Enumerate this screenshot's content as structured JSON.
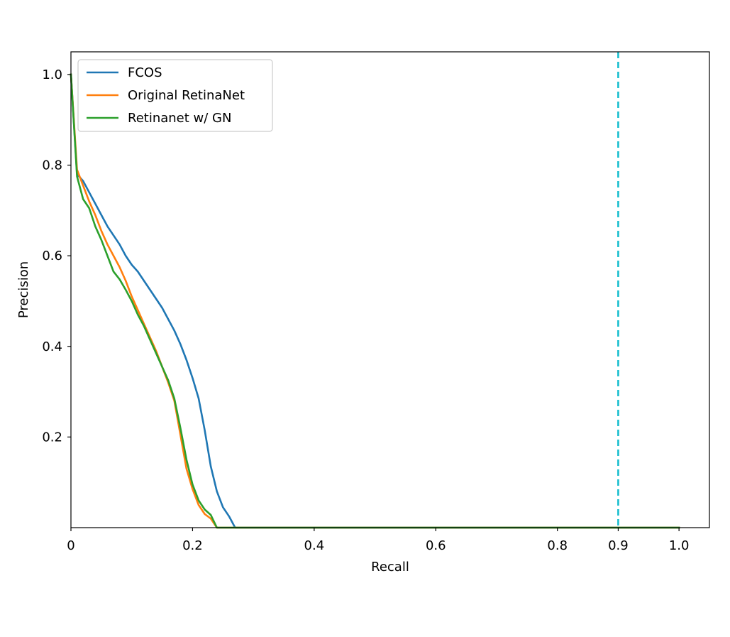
{
  "chart_data": {
    "type": "line",
    "title": "",
    "xlabel": "Recall",
    "ylabel": "Precision",
    "xlim": [
      0,
      1.05
    ],
    "ylim": [
      0,
      1.05
    ],
    "xticks": [
      {
        "value": 0,
        "label": "0"
      },
      {
        "value": 0.2,
        "label": "0.2"
      },
      {
        "value": 0.4,
        "label": "0.4"
      },
      {
        "value": 0.6,
        "label": "0.6"
      },
      {
        "value": 0.8,
        "label": "0.8"
      },
      {
        "value": 0.9,
        "label": "0.9"
      },
      {
        "value": 1.0,
        "label": "1.0"
      }
    ],
    "yticks": [
      {
        "value": 0.2,
        "label": "0.2"
      },
      {
        "value": 0.4,
        "label": "0.4"
      },
      {
        "value": 0.6,
        "label": "0.6"
      },
      {
        "value": 0.8,
        "label": "0.8"
      },
      {
        "value": 1.0,
        "label": "1.0"
      }
    ],
    "grid": false,
    "legend_position": "top-left",
    "series": [
      {
        "name": "FCOS",
        "color": "#1f77b4",
        "x": [
          0,
          0.01,
          0.02,
          0.03,
          0.04,
          0.05,
          0.06,
          0.07,
          0.08,
          0.09,
          0.1,
          0.11,
          0.12,
          0.13,
          0.14,
          0.15,
          0.16,
          0.17,
          0.18,
          0.19,
          0.2,
          0.21,
          0.22,
          0.23,
          0.24,
          0.25,
          0.26,
          0.27,
          0.3,
          0.4,
          0.5,
          0.6,
          0.7,
          0.8,
          0.9,
          1.0
        ],
        "y": [
          1.0,
          0.78,
          0.765,
          0.74,
          0.715,
          0.69,
          0.665,
          0.645,
          0.625,
          0.6,
          0.58,
          0.565,
          0.545,
          0.525,
          0.505,
          0.485,
          0.46,
          0.435,
          0.405,
          0.37,
          0.33,
          0.285,
          0.215,
          0.135,
          0.08,
          0.045,
          0.025,
          0.0,
          0.0,
          0.0,
          0.0,
          0.0,
          0.0,
          0.0,
          0.0,
          0.0
        ]
      },
      {
        "name": "Original RetinaNet",
        "color": "#ff7f0e",
        "x": [
          0,
          0.01,
          0.02,
          0.03,
          0.04,
          0.05,
          0.06,
          0.07,
          0.08,
          0.09,
          0.1,
          0.11,
          0.12,
          0.13,
          0.14,
          0.15,
          0.16,
          0.17,
          0.18,
          0.19,
          0.2,
          0.21,
          0.22,
          0.23,
          0.24,
          0.3,
          0.4,
          0.5,
          0.6,
          0.7,
          0.8,
          0.9,
          1.0
        ],
        "y": [
          1.0,
          0.79,
          0.755,
          0.72,
          0.69,
          0.655,
          0.625,
          0.6,
          0.575,
          0.545,
          0.51,
          0.48,
          0.45,
          0.42,
          0.39,
          0.355,
          0.32,
          0.28,
          0.205,
          0.13,
          0.085,
          0.05,
          0.03,
          0.02,
          0.0,
          0.0,
          0.0,
          0.0,
          0.0,
          0.0,
          0.0,
          0.0,
          0.0
        ]
      },
      {
        "name": "Retinanet w/ GN",
        "color": "#2ca02c",
        "x": [
          0,
          0.01,
          0.02,
          0.03,
          0.04,
          0.05,
          0.06,
          0.07,
          0.08,
          0.09,
          0.1,
          0.11,
          0.12,
          0.13,
          0.14,
          0.15,
          0.16,
          0.17,
          0.18,
          0.19,
          0.2,
          0.21,
          0.22,
          0.23,
          0.24,
          0.3,
          0.4,
          0.5,
          0.6,
          0.7,
          0.8,
          0.9,
          1.0
        ],
        "y": [
          1.0,
          0.775,
          0.725,
          0.705,
          0.665,
          0.635,
          0.6,
          0.565,
          0.548,
          0.525,
          0.5,
          0.47,
          0.445,
          0.415,
          0.385,
          0.355,
          0.325,
          0.285,
          0.22,
          0.15,
          0.095,
          0.06,
          0.04,
          0.028,
          0.0,
          0.0,
          0.0,
          0.0,
          0.0,
          0.0,
          0.0,
          0.0,
          0.0
        ]
      }
    ],
    "reference_lines": [
      {
        "orientation": "vertical",
        "x": 0.9,
        "color": "#17becf",
        "style": "dashed"
      }
    ]
  }
}
